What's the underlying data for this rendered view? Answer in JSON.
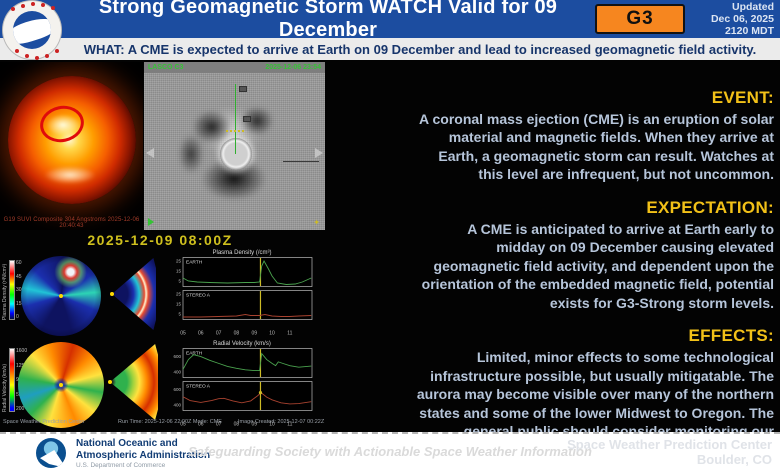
{
  "header": {
    "title": "Strong Geomagnetic Storm WATCH Valid for 09 December",
    "badge": "G3",
    "updated_label": "Updated",
    "updated_date": "Dec 06, 2025",
    "updated_time": "2120 MDT"
  },
  "what_bar": "WHAT: A CME is expected to arrive at Earth on 09 December and lead to increased geomagnetic field activity.",
  "sun_panel": {
    "caption": "G19 SUVI Composite 304 Angstroms 2025-12-06 20:40:43"
  },
  "lasco_panel": {
    "label": "LASCO C3",
    "timestamp": "2025-12-06 23:54",
    "marker_diamond": "✦"
  },
  "model": {
    "arrival_time": "2025-12-09 08:00Z",
    "density_colorbar": {
      "label": "Plasma Density (r²N/cm³)",
      "ticks": [
        "60",
        "45",
        "30",
        "15",
        "0"
      ]
    },
    "velocity_colorbar": {
      "label": "Radial Velocity (km/s)",
      "ticks": [
        "1600",
        "1250",
        "900",
        "550",
        "200"
      ]
    },
    "credits": {
      "left": "Space Weather Prediction Center",
      "center": "Run Time: 2025-12-06 22:00Z   Mode: CME",
      "right": "Image Created: 2025-12-07 00:22Z"
    }
  },
  "sections": [
    {
      "heading": "EVENT:",
      "body": "A coronal mass ejection (CME) is an eruption of solar material and magnetic fields. When they arrive at Earth, a geomagnetic storm can result. Watches at this level are infrequent, but not uncommon."
    },
    {
      "heading": "EXPECTATION:",
      "body": "A CME is anticipated to arrive at Earth early to midday on 09 December causing elevated geomagnetic field activity, and dependent upon the orientation of the embedded magnetic field, potential exists for G3-Strong storm levels."
    },
    {
      "heading": "EFFECTS:",
      "body": "Limited, minor effects to some technological infrastructure possible, but usually mitigatable. The aurora may become visible over many of the northern states and some of the lower Midwest to Oregon. The general public should consider monitoring our webpage for the latest information and updates."
    }
  ],
  "footer": {
    "agency_line1": "National Oceanic and",
    "agency_line2": "Atmospheric Administration",
    "department": "U.S. Department of Commerce",
    "tagline": "Safeguarding Society with Actionable Space Weather Information",
    "center_name": "Space Weather Prediction Center",
    "location": "Boulder, CO"
  },
  "colors": {
    "header_blue": "#1c4da0",
    "badge_orange": "#f6861f",
    "heading_yellow": "#f2c118",
    "body_text": "#b6c5da",
    "event_line_yellow": "#cdbb25",
    "earth_green": "#4aa24e",
    "stereo_red": "#a8422f"
  },
  "chart_data": [
    {
      "type": "line",
      "title": "Plasma Density (/cm³)",
      "x_range": [
        5,
        12.3
      ],
      "x_ticks": [
        5,
        6,
        7,
        8,
        9,
        10,
        11
      ],
      "x_tick_labels": [
        "05",
        "06",
        "07",
        "08",
        "09",
        "10",
        "11"
      ],
      "event_line_x": 9.35,
      "panels": [
        {
          "label": "EARTH",
          "color": "#4aa24e",
          "ylim": [
            0,
            28
          ],
          "y_ticks": [
            5,
            15,
            25
          ],
          "x": [
            5,
            5.3,
            5.8,
            6.5,
            7.5,
            8.5,
            9.0,
            9.3,
            9.42,
            9.55,
            9.8,
            10.0,
            10.3,
            10.8,
            11.3,
            11.7,
            12.2
          ],
          "y": [
            8,
            5,
            4,
            3.5,
            3,
            3.5,
            3.5,
            4,
            20,
            25,
            17,
            10,
            3,
            1.5,
            2,
            4,
            8
          ]
        },
        {
          "label": "STEREO A",
          "color": "#a8422f",
          "ylim": [
            0,
            28
          ],
          "y_ticks": [
            5,
            15,
            25
          ],
          "x": [
            5,
            6,
            7,
            8,
            8.5,
            8.8,
            9.3,
            9.6,
            10,
            10.5,
            11,
            11.5,
            12.2
          ],
          "y": [
            2,
            2,
            2.5,
            3,
            4.5,
            3.5,
            3.5,
            4.5,
            3,
            2.5,
            2.5,
            3,
            3.5
          ]
        }
      ]
    },
    {
      "type": "line",
      "title": "Radial Velocity (km/s)",
      "x_range": [
        5,
        12.3
      ],
      "x_ticks": [
        5,
        6,
        7,
        8,
        9,
        10,
        11
      ],
      "x_tick_labels": [
        "05",
        "06",
        "07",
        "08",
        "09",
        "10",
        "11"
      ],
      "event_line_x": 9.35,
      "panels": [
        {
          "label": "EARTH",
          "color": "#4aa24e",
          "ylim": [
            330,
            700
          ],
          "y_ticks": [
            400,
            600
          ],
          "x": [
            5,
            5.3,
            5.6,
            6.0,
            6.5,
            7.0,
            7.5,
            8.0,
            8.5,
            9.0,
            9.3,
            9.42,
            9.7,
            10.0,
            10.2,
            10.35,
            10.6,
            11.0,
            11.5,
            12.2
          ],
          "y": [
            430,
            560,
            625,
            600,
            550,
            510,
            470,
            445,
            425,
            415,
            415,
            640,
            560,
            510,
            480,
            530,
            510,
            480,
            460,
            475
          ]
        },
        {
          "label": "STEREO A",
          "color": "#a8422f",
          "ylim": [
            330,
            700
          ],
          "y_ticks": [
            400,
            600
          ],
          "event_dot_y": 560,
          "x": [
            5,
            5.4,
            6.0,
            6.6,
            7.0,
            7.3,
            7.8,
            8.3,
            8.8,
            9.2,
            9.38,
            9.7,
            10.0,
            10.5,
            11.0,
            11.5,
            12.2
          ],
          "y": [
            505,
            455,
            430,
            455,
            480,
            485,
            450,
            425,
            450,
            520,
            560,
            500,
            465,
            425,
            410,
            415,
            440
          ]
        }
      ]
    }
  ]
}
